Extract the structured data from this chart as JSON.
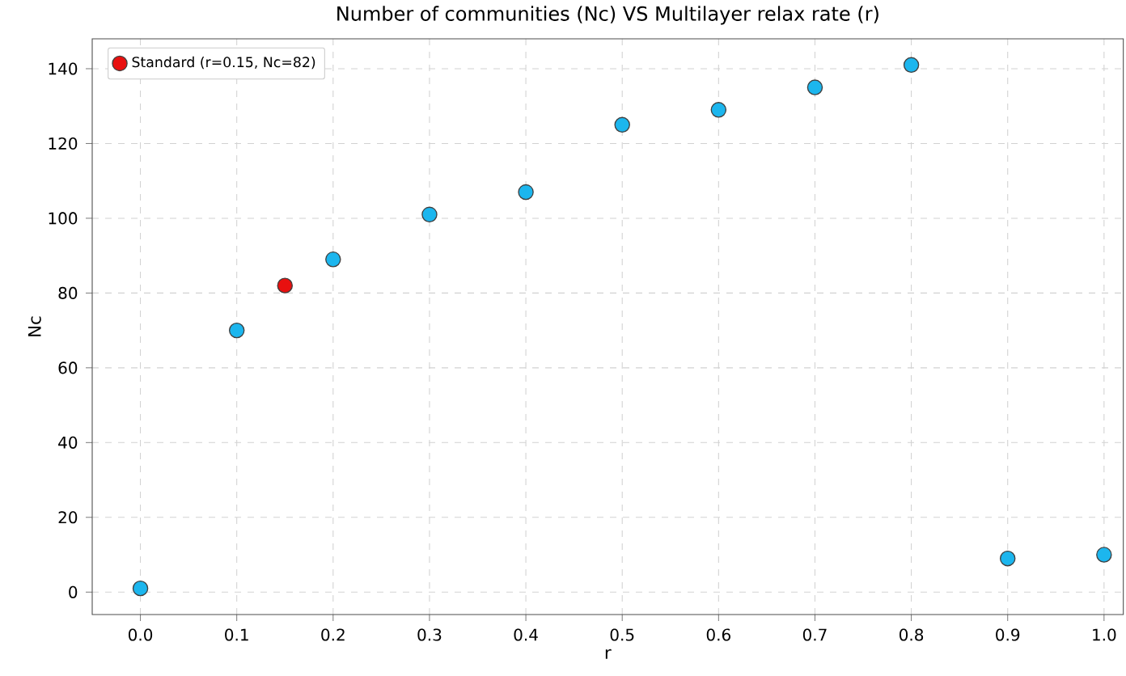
{
  "chart_data": {
    "type": "scatter",
    "title": "Number of communities (Nc) VS Multilayer relax rate (r)",
    "xlabel": "r",
    "ylabel": "Nc",
    "series": [
      {
        "color": "#1cb6ee",
        "x": [
          0.0,
          0.1,
          0.2,
          0.3,
          0.4,
          0.5,
          0.6,
          0.7,
          0.8,
          0.9,
          1.0
        ],
        "values": [
          1,
          70,
          89,
          101,
          107,
          125,
          129,
          135,
          141,
          9,
          10
        ]
      },
      {
        "name": "Standard (r=0.15, Nc=82)",
        "color": "#e8100f",
        "x": [
          0.15
        ],
        "values": [
          82
        ]
      }
    ],
    "xlim": [
      -0.05,
      1.02
    ],
    "ylim": [
      -6,
      148
    ],
    "xticks": [
      {
        "value": 0,
        "label": "0.0"
      },
      0.1,
      0.2,
      0.3,
      0.4,
      0.5,
      0.6,
      0.7,
      0.8,
      0.9,
      {
        "value": 1,
        "label": "1.0"
      }
    ],
    "yticks": [
      0,
      20,
      40,
      60,
      80,
      100,
      120,
      140
    ],
    "grid": true,
    "legend": "top left",
    "marker": "circle"
  }
}
